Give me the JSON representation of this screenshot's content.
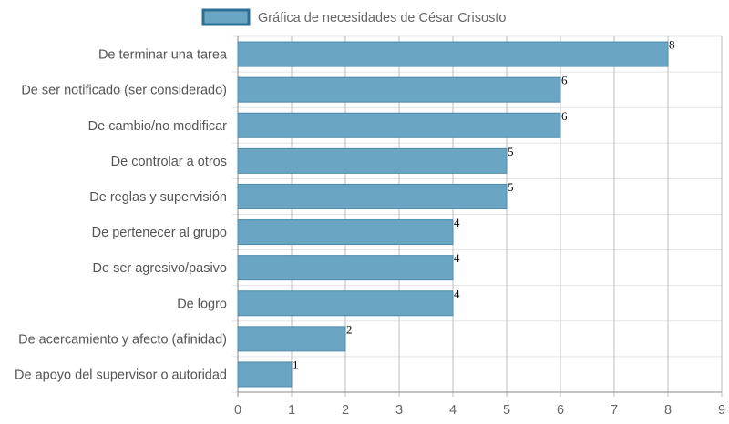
{
  "chart_data": {
    "type": "bar",
    "orientation": "horizontal",
    "categories": [
      "De terminar una tarea",
      "De ser notificado (ser considerado)",
      "De cambio/no modificar",
      "De controlar a otros",
      "De reglas y supervisión",
      "De pertenecer al grupo",
      "De ser agresivo/pasivo",
      "De logro",
      "De acercamiento y afecto (afinidad)",
      "De apoyo del supervisor o autoridad"
    ],
    "series": [
      {
        "name": "Gráfica de necesidades de César Crisosto",
        "values": [
          8,
          6,
          6,
          5,
          5,
          4,
          4,
          4,
          2,
          1
        ]
      }
    ],
    "xlim": [
      0,
      9
    ],
    "x_ticks": [
      "0",
      "1",
      "2",
      "3",
      "4",
      "5",
      "6",
      "7",
      "8",
      "9"
    ],
    "grid": true,
    "legend_position": "top",
    "colors": {
      "bar_fill": "#6aa5c4",
      "bar_stroke": "#4d8aab",
      "legend_fill": "#6aa5c4",
      "legend_stroke": "#2c6f96",
      "grid": "#e3e3e3",
      "axis": "#888888"
    }
  }
}
